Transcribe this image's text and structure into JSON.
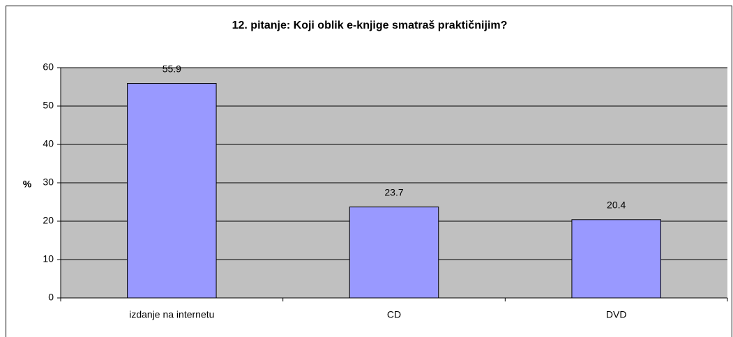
{
  "chart_data": {
    "type": "bar",
    "title": "12. pitanje: Koji oblik e-knjige smatraš praktičnijim?",
    "y_label": "%",
    "categories": [
      "izdanje na internetu",
      "CD",
      "DVD"
    ],
    "values": [
      55.9,
      23.7,
      20.4
    ],
    "color": "#9999ff",
    "ylim": [
      0,
      60
    ],
    "yticks": [
      0,
      10,
      20,
      30,
      40,
      50,
      60
    ],
    "grid": true,
    "data_labels": true
  }
}
